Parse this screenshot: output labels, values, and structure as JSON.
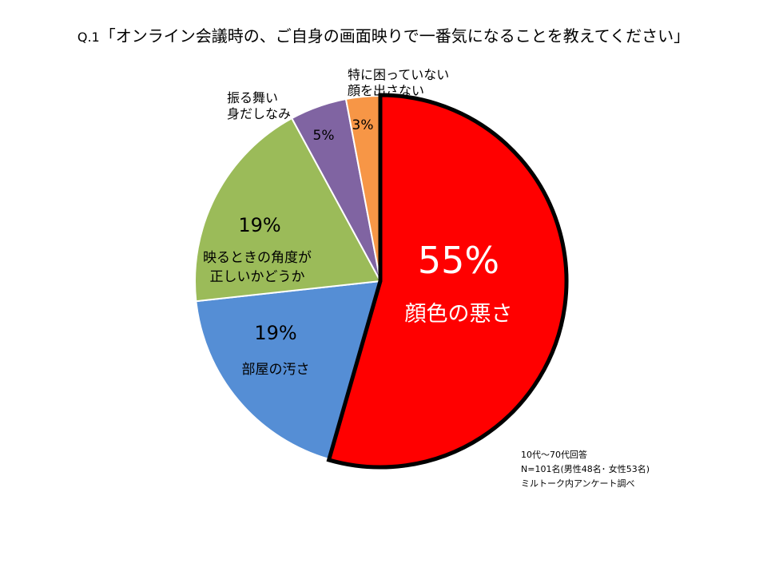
{
  "title": "Q.1「オンライン会議時の、ご自身の画面映りで一番気になることを教えてください」",
  "title_prefix": "Q.1",
  "title_text": "「オンライン会議時の、ご自身の画面映りで一番気になることを教えてください」",
  "chart_data": {
    "type": "pie",
    "start": "12 o'clock",
    "direction": "clockwise",
    "slices": [
      {
        "name_lines": [
          "顔色の悪さ"
        ],
        "value": 55,
        "label": "55%",
        "color": "#ff0000",
        "text_color": "#ffffff",
        "highlight": true
      },
      {
        "name_lines": [
          "部屋の汚さ"
        ],
        "value": 19,
        "label": "19%",
        "color": "#558ed5",
        "text_color": "#000000"
      },
      {
        "name_lines": [
          "映るときの角度が",
          "正しいかどうか"
        ],
        "value": 19,
        "label": "19%",
        "color": "#9bbb59",
        "text_color": "#000000"
      },
      {
        "name_lines": [
          "振る舞い",
          "身だしなみ"
        ],
        "value": 5,
        "label": "5%",
        "color": "#8064a2",
        "text_color": "#000000",
        "label_outside": true
      },
      {
        "name_lines": [
          "特に困っていない",
          "顔を出さない"
        ],
        "value": 3,
        "label": "3%",
        "color": "#f79646",
        "text_color": "#000000",
        "label_outside": true
      }
    ]
  },
  "footnote": [
    "10代～70代回答",
    "N=101名(男性48名･ 女性53名)",
    "ミルトーク内アンケート調べ"
  ]
}
